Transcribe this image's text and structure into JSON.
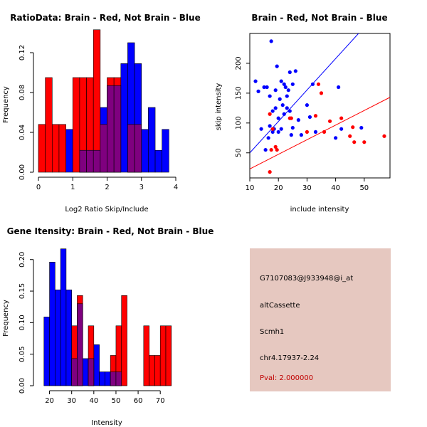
{
  "chart_data": [
    {
      "type": "histogram",
      "title": "RatioData: Brain - Red, Not Brain - Blue",
      "xlabel": "Log2 Ratio Skip/Include",
      "ylabel": "Frequency",
      "xlim": [
        0,
        4
      ],
      "ylim": [
        0,
        0.14
      ],
      "xticks": [
        "0",
        "1",
        "2",
        "3",
        "4"
      ],
      "yticks": [
        "0.00",
        "0.04",
        "0.08",
        "0.12"
      ],
      "bin_width": 0.2,
      "series": [
        {
          "name": "Not Brain",
          "color": "#0000ff",
          "bin_starts": [
            0.8,
            1.0,
            1.2,
            1.4,
            1.6,
            1.8,
            2.0,
            2.2,
            2.4,
            2.6,
            2.8,
            3.0,
            3.2,
            3.4,
            3.6
          ],
          "values": [
            0.043,
            0.0,
            0.022,
            0.022,
            0.022,
            0.065,
            0.087,
            0.087,
            0.109,
            0.13,
            0.109,
            0.043,
            0.065,
            0.022,
            0.043
          ]
        },
        {
          "name": "Brain",
          "color": "#ff0000",
          "bin_starts": [
            0.0,
            0.2,
            0.4,
            0.6,
            0.8,
            1.0,
            1.2,
            1.4,
            1.6,
            1.8,
            2.0,
            2.2,
            2.4,
            2.6,
            2.8
          ],
          "values": [
            0.048,
            0.095,
            0.048,
            0.048,
            0.0,
            0.095,
            0.095,
            0.095,
            0.143,
            0.048,
            0.095,
            0.095,
            0.0,
            0.048,
            0.048
          ]
        }
      ]
    },
    {
      "type": "scatter",
      "title": "Brain - Red, Not Brain - Blue",
      "xlabel": "include intensity",
      "ylabel": "skip intensity",
      "xlim": [
        10,
        59
      ],
      "ylim": [
        8,
        250
      ],
      "xticks": [
        "10",
        "20",
        "30",
        "40",
        "50"
      ],
      "yticks": [
        "50",
        "100",
        "150",
        "200"
      ],
      "series": [
        {
          "name": "Not Brain",
          "color": "#0000ff",
          "x": [
            12,
            13,
            14,
            15,
            15.5,
            16,
            16.5,
            17,
            17,
            17.5,
            18,
            18,
            18.5,
            19,
            19,
            19.5,
            20,
            20,
            20.5,
            21,
            21,
            21.5,
            22,
            22,
            22.5,
            23,
            23,
            23.5,
            24,
            24,
            24.5,
            25,
            25,
            26,
            27,
            28,
            30,
            31,
            32,
            33,
            40,
            41,
            42,
            49
          ],
          "y": [
            170,
            153,
            90,
            160,
            55,
            160,
            75,
            145,
            95,
            237,
            85,
            120,
            90,
            155,
            125,
            195,
            108,
            85,
            140,
            170,
            90,
            130,
            165,
            115,
            160,
            145,
            125,
            155,
            185,
            120,
            80,
            165,
            92,
            187,
            105,
            80,
            130,
            110,
            165,
            85,
            75,
            160,
            90,
            92
          ],
          "fit_line": [
            [
              10,
              50
            ],
            [
              48,
              250
            ]
          ]
        },
        {
          "name": "Brain",
          "color": "#ff0000",
          "x": [
            17,
            17,
            17.5,
            18,
            19,
            19.5,
            24,
            24.5,
            30,
            33,
            34,
            35,
            36,
            38,
            42,
            45,
            46,
            46.5,
            50,
            57
          ],
          "y": [
            115,
            18,
            55,
            90,
            60,
            55,
            108,
            108,
            85,
            112,
            165,
            150,
            85,
            103,
            108,
            78,
            93,
            68,
            68,
            78
          ],
          "fit_line": [
            [
              10,
              23
            ],
            [
              59,
              143
            ]
          ]
        }
      ]
    },
    {
      "type": "histogram",
      "title": "Gene Itensity: Brain - Red, Not Brain - Blue",
      "xlabel": "Intensity",
      "ylabel": "Frequency",
      "xlim": [
        15,
        77
      ],
      "ylim": [
        0,
        0.22
      ],
      "xticks": [
        "20",
        "30",
        "40",
        "50",
        "60",
        "70"
      ],
      "yticks": [
        "0.00",
        "0.05",
        "0.10",
        "0.15",
        "0.20"
      ],
      "bin_width": 2.5,
      "series": [
        {
          "name": "Not Brain",
          "color": "#0000ff",
          "bin_starts": [
            17.5,
            20,
            22.5,
            25,
            27.5,
            30,
            32.5,
            35,
            37.5,
            40,
            42.5,
            45,
            47.5,
            50
          ],
          "values": [
            0.109,
            0.196,
            0.152,
            0.217,
            0.152,
            0.043,
            0.13,
            0.043,
            0.043,
            0.065,
            0.022,
            0.022,
            0.022,
            0.022
          ]
        },
        {
          "name": "Brain",
          "color": "#ff0000",
          "bin_starts": [
            30,
            32.5,
            37.5,
            47.5,
            50,
            52.5,
            62.5,
            65,
            67.5,
            70,
            72.5
          ],
          "values": [
            0.095,
            0.143,
            0.095,
            0.048,
            0.095,
            0.143,
            0.095,
            0.048,
            0.048,
            0.095,
            0.095
          ]
        }
      ]
    }
  ],
  "info_panel": {
    "probe_id": "G7107083@J933948@i_at",
    "event_type": "altCassette",
    "gene": "Scmh1",
    "location": "chr4.17937-2.24",
    "pval": "Pval: 2.000000"
  },
  "colors": {
    "red": "#ff0000",
    "blue": "#0000ff",
    "overlap": "#7f007f",
    "panel": "#e6c8c0"
  }
}
